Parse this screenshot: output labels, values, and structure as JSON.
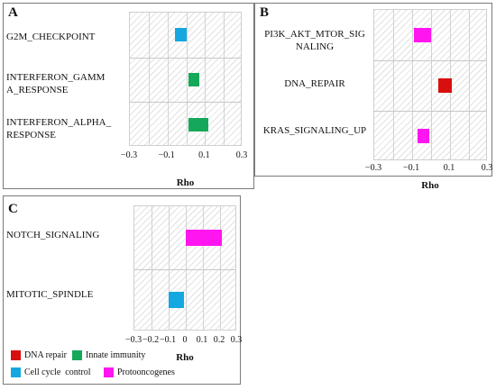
{
  "colors": {
    "dna_repair": "#d90f0f",
    "innate_immunity": "#16a85a",
    "cell_cycle_control": "#15a8e0",
    "protooncogenes": "#ff15f0"
  },
  "chart_data": [
    {
      "panel": "A",
      "type": "bar",
      "orientation": "horizontal",
      "xlabel": "Rho",
      "xlim": [
        -0.3,
        0.3
      ],
      "xticks": [
        "−0.3",
        "−0.1",
        "0.1",
        "0.3"
      ],
      "categories": [
        "G2M_CHECKPOINT",
        "INTERFERON_GAMMA_RESPONSE",
        "INTERFERON_ALPHA_RESPONSE"
      ],
      "category_lines": [
        [
          "G2M_CHECKPOINT"
        ],
        [
          "INTERFERON_GAMM",
          "A_RESPONSE"
        ],
        [
          "INTERFERON_ALPHA_",
          "RESPONSE"
        ]
      ],
      "bars": [
        {
          "from": -0.06,
          "to": 0.0,
          "group": "cell_cycle_control"
        },
        {
          "from": 0.01,
          "to": 0.07,
          "group": "innate_immunity"
        },
        {
          "from": 0.01,
          "to": 0.12,
          "group": "innate_immunity"
        }
      ]
    },
    {
      "panel": "B",
      "type": "bar",
      "orientation": "horizontal",
      "xlabel": "Rho",
      "xlim": [
        -0.3,
        0.3
      ],
      "xticks": [
        "−0.3",
        "−0.1",
        "0.1",
        "0.3"
      ],
      "categories": [
        "PI3K_AKT_MTOR_SIGNALING",
        "DNA_REPAIR",
        "KRAS_SIGNALING_UP"
      ],
      "category_lines": [
        [
          "PI3K_AKT_MTOR_SIG",
          "NALING"
        ],
        [
          "DNA_REPAIR"
        ],
        [
          "KRAS_SIGNALING_UP"
        ]
      ],
      "bars": [
        {
          "from": -0.09,
          "to": 0.0,
          "group": "protooncogenes"
        },
        {
          "from": 0.04,
          "to": 0.11,
          "group": "dna_repair"
        },
        {
          "from": -0.07,
          "to": -0.01,
          "group": "protooncogenes"
        }
      ]
    },
    {
      "panel": "C",
      "type": "bar",
      "orientation": "horizontal",
      "xlabel": "Rho",
      "xlim": [
        -0.3,
        0.3
      ],
      "xticks": [
        "−0.3",
        "−0.2",
        "−0.1",
        "0",
        "0.1",
        "0.2",
        "0.3"
      ],
      "categories": [
        "NOTCH_SIGNALING",
        "MITOTIC_SPINDLE"
      ],
      "category_lines": [
        [
          "NOTCH_SIGNALING"
        ],
        [
          "MITOTIC_SPINDLE"
        ]
      ],
      "bars": [
        {
          "from": 0.0,
          "to": 0.21,
          "group": "protooncogenes"
        },
        {
          "from": -0.1,
          "to": -0.01,
          "group": "cell_cycle_control"
        }
      ]
    }
  ],
  "legend": [
    {
      "label": "DNA repair",
      "group": "dna_repair"
    },
    {
      "label": "Innate immunity",
      "group": "innate_immunity"
    },
    {
      "label": "Cell cycle  control",
      "group": "cell_cycle_control"
    },
    {
      "label": "Protooncogenes",
      "group": "protooncogenes"
    }
  ]
}
